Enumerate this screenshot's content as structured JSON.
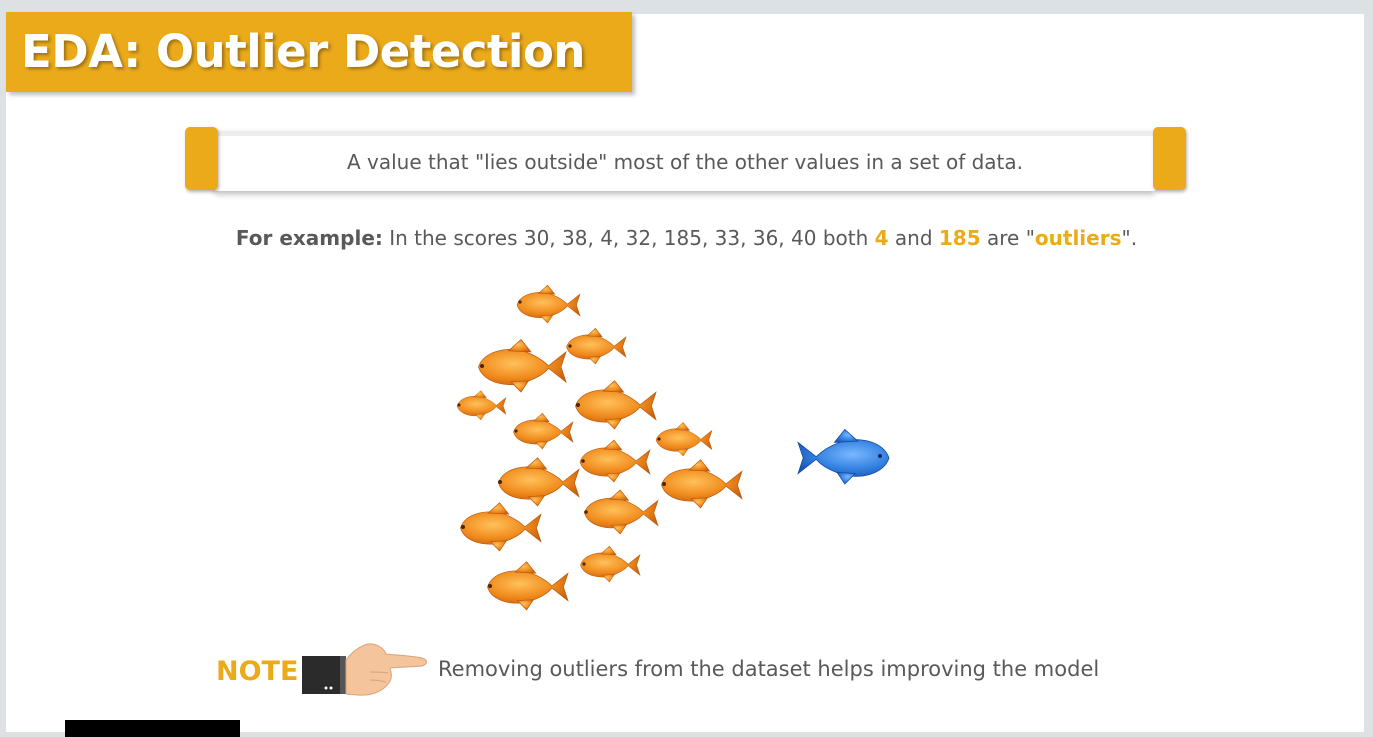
{
  "title": "EDA: Outlier Detection",
  "definition": "A value that \"lies outside\" most of the other values in a set of data.",
  "example": {
    "lead": "For example:",
    "part1": " In the scores 30, 38, 4, 32, 185, 33, 36, 40 both ",
    "value1": "4",
    "part2": " and ",
    "value2": "185",
    "part3": " are \"",
    "term": "outliers",
    "part4": "\"."
  },
  "illustration": {
    "school_fish_color": "#f08a1c",
    "outlier_fish_color": "#2f7fe0"
  },
  "note": {
    "label": "NOTE",
    "text": "Removing outliers from the dataset helps improving the model"
  },
  "colors": {
    "accent": "#ebaa1a",
    "body_text": "#595959"
  }
}
